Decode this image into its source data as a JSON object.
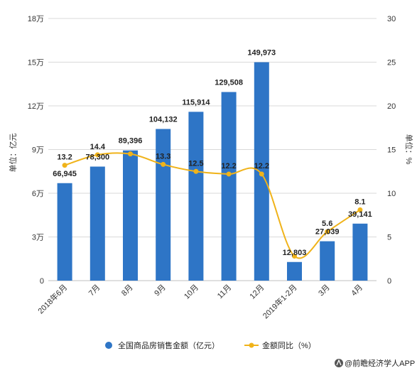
{
  "chart_data": {
    "type": "bar",
    "categories": [
      "2018年6月",
      "7月",
      "8月",
      "9月",
      "10月",
      "11月",
      "12月",
      "2019年1-2月",
      "3月",
      "4月"
    ],
    "series": [
      {
        "name": "全国商品房销售金额（亿元）",
        "type": "bar",
        "axis": "left",
        "values": [
          66945,
          78300,
          89396,
          104132,
          115914,
          129508,
          149973,
          12803,
          27039,
          39141
        ],
        "labels": [
          "66,945",
          "78,300",
          "89,396",
          "104,132",
          "115,914",
          "129,508",
          "149,973",
          "12,803",
          "27,039",
          "39,141"
        ],
        "color": "#2e75c6"
      },
      {
        "name": "金额同比（%）",
        "type": "line",
        "axis": "right",
        "values": [
          13.2,
          14.4,
          14.5,
          13.3,
          12.5,
          12.2,
          12.2,
          2.8,
          5.6,
          8.1
        ],
        "labels": [
          "13.2",
          "14.4",
          "",
          "13.3",
          "12.5",
          "12.2",
          "12.2",
          "",
          "5.6",
          "8.1"
        ],
        "color": "#f0b31a"
      }
    ],
    "y_left": {
      "label": "单位：亿元",
      "ylim": [
        0,
        180000
      ],
      "ticks": [
        0,
        30000,
        60000,
        90000,
        120000,
        150000,
        180000
      ],
      "tick_labels": [
        "0",
        "3万",
        "6万",
        "9万",
        "12万",
        "15万",
        "18万"
      ]
    },
    "y_right": {
      "label": "单位：%",
      "ylim": [
        0,
        30
      ],
      "ticks": [
        0,
        5,
        10,
        15,
        20,
        25,
        30
      ],
      "tick_labels": [
        "0",
        "5",
        "10",
        "15",
        "20",
        "25",
        "30"
      ]
    },
    "grid": true,
    "legend": "bottom"
  },
  "legend": [
    {
      "label": "全国商品房销售金额（亿元）",
      "color": "#2e75c6"
    },
    {
      "label": "金额同比（%）",
      "color": "#f0b31a"
    }
  ],
  "source": "@前瞻经济学人APP"
}
